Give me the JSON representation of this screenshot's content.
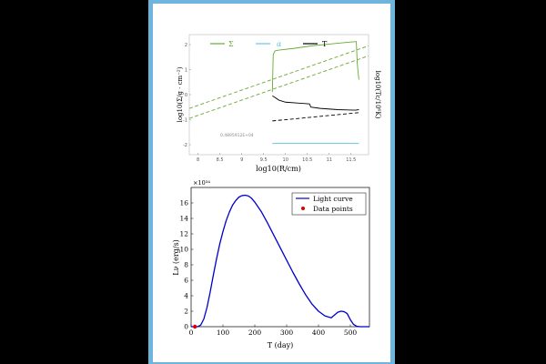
{
  "chart_data": [
    {
      "type": "line",
      "xlabel": "log10(R/cm)",
      "ylabel_left": "log10(Σ/g · cm⁻²)",
      "ylabel_right": "log10(Tc/10⁶K)",
      "xlim": [
        7.8,
        11.9
      ],
      "ylim": [
        -2.4,
        2.4
      ],
      "x_ticks": [
        8,
        8.5,
        9,
        9.5,
        10,
        10.5,
        11,
        11.5
      ],
      "y_ticks": [
        -2,
        -1,
        0,
        1,
        2
      ],
      "annotation": "0.4895912E+04",
      "legend": [
        {
          "label": "Σ",
          "color": "#66aa33"
        },
        {
          "label": "α",
          "color": "#66c6dd"
        },
        {
          "label": "T",
          "color": "#000000"
        }
      ],
      "series": [
        {
          "name": "Σ",
          "style": "dashed",
          "color": "#66aa33",
          "x": [
            7.8,
            11.9
          ],
          "y": [
            -0.55,
            1.95
          ]
        },
        {
          "name": "Σ",
          "style": "dashed",
          "color": "#66aa33",
          "x": [
            7.8,
            11.9
          ],
          "y": [
            -0.95,
            1.55
          ]
        },
        {
          "name": "Σ",
          "style": "solid",
          "color": "#66aa33",
          "x": [
            9.7,
            9.72,
            9.76,
            9.85,
            10.2,
            10.6,
            11.0,
            11.35,
            11.62,
            11.64,
            11.66,
            11.68
          ],
          "y": [
            0.1,
            1.6,
            1.75,
            1.78,
            1.85,
            1.95,
            2.02,
            2.08,
            2.12,
            1.3,
            0.9,
            0.6
          ]
        },
        {
          "name": "T",
          "style": "solid",
          "color": "#000000",
          "x": [
            9.7,
            9.75,
            9.85,
            10.0,
            10.3,
            10.55,
            10.58,
            10.8,
            11.2,
            11.6,
            11.68
          ],
          "y": [
            -0.05,
            -0.1,
            -0.22,
            -0.3,
            -0.34,
            -0.37,
            -0.5,
            -0.55,
            -0.6,
            -0.62,
            -0.6
          ]
        },
        {
          "name": "T",
          "style": "dashed",
          "color": "#000000",
          "x": [
            9.7,
            11.68
          ],
          "y": [
            -1.05,
            -0.72
          ]
        },
        {
          "name": "α",
          "style": "solid",
          "color": "#66c6dd",
          "x": [
            9.7,
            11.68
          ],
          "y": [
            -1.95,
            -1.95
          ]
        }
      ]
    },
    {
      "type": "line",
      "xlabel": "T (day)",
      "ylabel": "Lν (erg/s)",
      "y_multiplier": "×10³⁴",
      "xlim": [
        0,
        560
      ],
      "ylim": [
        0,
        18
      ],
      "x_ticks": [
        0,
        100,
        200,
        300,
        400,
        500
      ],
      "y_ticks": [
        0,
        2,
        4,
        6,
        8,
        10,
        12,
        14,
        16
      ],
      "legend": [
        {
          "label": "Light curve",
          "color": "#0000cc",
          "kind": "line"
        },
        {
          "label": "Data points",
          "color": "#dd0000",
          "kind": "dot"
        }
      ],
      "series": [
        {
          "name": "Light curve",
          "color": "#0000cc",
          "x": [
            0,
            20,
            30,
            40,
            50,
            60,
            70,
            80,
            90,
            100,
            110,
            120,
            130,
            140,
            150,
            160,
            170,
            180,
            190,
            200,
            220,
            240,
            260,
            280,
            300,
            320,
            340,
            360,
            380,
            400,
            420,
            440,
            450,
            460,
            470,
            480,
            490,
            500,
            510,
            520,
            530,
            540,
            560
          ],
          "y": [
            0,
            0,
            0.2,
            1.0,
            2.5,
            4.5,
            6.7,
            8.8,
            10.7,
            12.3,
            13.7,
            14.8,
            15.7,
            16.3,
            16.75,
            16.95,
            17.0,
            16.9,
            16.6,
            16.1,
            14.9,
            13.4,
            11.8,
            10.2,
            8.6,
            7.0,
            5.5,
            4.1,
            2.9,
            2.0,
            1.4,
            1.15,
            1.5,
            1.85,
            2.0,
            1.95,
            1.7,
            0.9,
            0.3,
            0.05,
            0,
            0,
            0
          ]
        },
        {
          "name": "Data points",
          "color": "#dd0000",
          "kind": "scatter",
          "x": [
            12
          ],
          "y": [
            0
          ]
        }
      ]
    }
  ]
}
